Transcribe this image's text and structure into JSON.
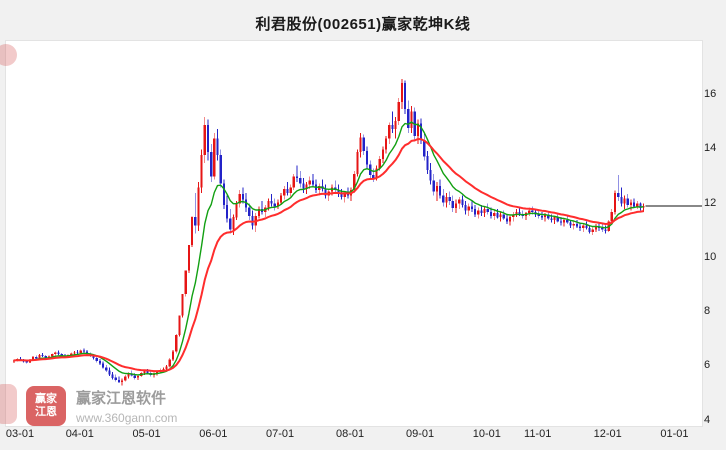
{
  "watermark": {
    "logo_line1": "赢家",
    "logo_line2": "江恩",
    "brand": "赢家江恩软件",
    "url": "www.360gann.com"
  },
  "chart_data": {
    "type": "candlestick",
    "title": "利君股份(002651)赢家乾坤K线",
    "last_price": 11.92,
    "colors": {
      "up": "#e61515",
      "down": "#2323c8",
      "last_price_line": "#111111",
      "plot_background": "#ffffff",
      "page_background": "#f1f1f1"
    },
    "y_axis": {
      "ticks": [
        16,
        14,
        12,
        10,
        8,
        6,
        4
      ],
      "min": 3.8,
      "max": 18.0
    },
    "x_axis": {
      "labels": [
        {
          "index": 0,
          "label": "03-01"
        },
        {
          "index": 21,
          "label": "04-01"
        },
        {
          "index": 42,
          "label": "05-01"
        },
        {
          "index": 63,
          "label": "06-01"
        },
        {
          "index": 84,
          "label": "07-01"
        },
        {
          "index": 106,
          "label": "08-01"
        },
        {
          "index": 128,
          "label": "09-01"
        },
        {
          "index": 149,
          "label": "10-01"
        },
        {
          "index": 165,
          "label": "11-01"
        },
        {
          "index": 187,
          "label": "12-01"
        },
        {
          "index": 208,
          "label": "01-01"
        }
      ]
    },
    "overlays": [
      {
        "name": "fast-ma",
        "period": 10,
        "color": "#12a012",
        "width": 1.4
      },
      {
        "name": "slow-ma",
        "period": 22,
        "color": "#ff2d2d",
        "width": 2
      }
    ],
    "candles": [
      [
        6.18,
        6.25,
        6.12,
        6.22
      ],
      [
        6.22,
        6.3,
        6.18,
        6.28
      ],
      [
        6.28,
        6.35,
        6.22,
        6.25
      ],
      [
        6.25,
        6.28,
        6.15,
        6.18
      ],
      [
        6.18,
        6.24,
        6.1,
        6.14
      ],
      [
        6.14,
        6.28,
        6.12,
        6.26
      ],
      [
        6.26,
        6.38,
        6.22,
        6.35
      ],
      [
        6.35,
        6.4,
        6.28,
        6.3
      ],
      [
        6.3,
        6.45,
        6.28,
        6.42
      ],
      [
        6.42,
        6.5,
        6.35,
        6.38
      ],
      [
        6.38,
        6.42,
        6.28,
        6.32
      ],
      [
        6.32,
        6.4,
        6.26,
        6.36
      ],
      [
        6.36,
        6.48,
        6.32,
        6.45
      ],
      [
        6.45,
        6.55,
        6.4,
        6.52
      ],
      [
        6.52,
        6.58,
        6.42,
        6.46
      ],
      [
        6.46,
        6.5,
        6.35,
        6.4
      ],
      [
        6.4,
        6.45,
        6.3,
        6.34
      ],
      [
        6.34,
        6.44,
        6.3,
        6.42
      ],
      [
        6.42,
        6.52,
        6.38,
        6.48
      ],
      [
        6.48,
        6.56,
        6.42,
        6.52
      ],
      [
        6.52,
        6.6,
        6.45,
        6.5
      ],
      [
        6.5,
        6.62,
        6.45,
        6.58
      ],
      [
        6.58,
        6.65,
        6.5,
        6.55
      ],
      [
        6.55,
        6.6,
        6.42,
        6.46
      ],
      [
        6.46,
        6.52,
        6.35,
        6.38
      ],
      [
        6.38,
        6.44,
        6.25,
        6.3
      ],
      [
        6.3,
        6.36,
        6.15,
        6.2
      ],
      [
        6.2,
        6.28,
        6.05,
        6.1
      ],
      [
        6.1,
        6.18,
        5.92,
        5.96
      ],
      [
        5.96,
        6.05,
        5.8,
        5.85
      ],
      [
        5.85,
        5.95,
        5.65,
        5.7
      ],
      [
        5.7,
        5.8,
        5.52,
        5.58
      ],
      [
        5.58,
        5.7,
        5.45,
        5.5
      ],
      [
        5.5,
        5.62,
        5.38,
        5.42
      ],
      [
        5.42,
        5.55,
        5.3,
        5.48
      ],
      [
        5.48,
        5.68,
        5.44,
        5.62
      ],
      [
        5.62,
        5.78,
        5.55,
        5.72
      ],
      [
        5.72,
        5.85,
        5.62,
        5.66
      ],
      [
        5.66,
        5.75,
        5.52,
        5.58
      ],
      [
        5.58,
        5.7,
        5.5,
        5.65
      ],
      [
        5.65,
        5.8,
        5.6,
        5.75
      ],
      [
        5.75,
        5.88,
        5.68,
        5.82
      ],
      [
        5.82,
        5.9,
        5.7,
        5.76
      ],
      [
        5.76,
        5.84,
        5.62,
        5.68
      ],
      [
        5.68,
        5.78,
        5.58,
        5.72
      ],
      [
        5.72,
        5.85,
        5.66,
        5.8
      ],
      [
        5.8,
        5.92,
        5.74,
        5.86
      ],
      [
        5.86,
        5.96,
        5.78,
        5.9
      ],
      [
        5.9,
        6.05,
        5.84,
        6.0
      ],
      [
        6.0,
        6.3,
        5.95,
        6.26
      ],
      [
        6.26,
        6.6,
        6.2,
        6.55
      ],
      [
        6.55,
        7.2,
        6.48,
        7.15
      ],
      [
        7.15,
        7.87,
        7.1,
        7.87
      ],
      [
        7.87,
        8.66,
        7.8,
        8.66
      ],
      [
        8.66,
        9.53,
        8.58,
        9.53
      ],
      [
        9.53,
        10.48,
        9.45,
        10.48
      ],
      [
        10.48,
        11.53,
        10.4,
        11.5
      ],
      [
        11.5,
        12.4,
        10.9,
        11.2
      ],
      [
        11.2,
        12.8,
        11.0,
        12.6
      ],
      [
        12.6,
        14.0,
        12.4,
        13.8
      ],
      [
        13.8,
        15.2,
        13.5,
        14.9
      ],
      [
        14.9,
        15.1,
        13.6,
        13.9
      ],
      [
        13.9,
        14.2,
        12.8,
        13.0
      ],
      [
        13.0,
        14.6,
        12.9,
        14.4
      ],
      [
        14.4,
        14.75,
        13.6,
        13.8
      ],
      [
        13.8,
        14.0,
        12.6,
        12.75
      ],
      [
        12.75,
        12.9,
        11.8,
        11.95
      ],
      [
        11.95,
        12.3,
        11.3,
        11.45
      ],
      [
        11.45,
        11.8,
        10.9,
        11.05
      ],
      [
        11.05,
        11.6,
        10.85,
        11.5
      ],
      [
        11.5,
        12.1,
        11.4,
        12.0
      ],
      [
        12.0,
        12.5,
        11.85,
        12.35
      ],
      [
        12.35,
        12.6,
        12.0,
        12.15
      ],
      [
        12.15,
        12.4,
        11.7,
        11.85
      ],
      [
        11.85,
        12.0,
        11.4,
        11.55
      ],
      [
        11.55,
        11.75,
        11.05,
        11.2
      ],
      [
        11.2,
        11.65,
        10.95,
        11.55
      ],
      [
        11.55,
        11.9,
        11.45,
        11.8
      ],
      [
        11.8,
        12.1,
        11.6,
        11.7
      ],
      [
        11.7,
        11.95,
        11.5,
        11.85
      ],
      [
        11.85,
        12.2,
        11.75,
        12.1
      ],
      [
        12.1,
        12.35,
        11.9,
        12.0
      ],
      [
        12.0,
        12.2,
        11.75,
        11.9
      ],
      [
        11.9,
        12.15,
        11.8,
        12.05
      ],
      [
        12.05,
        12.4,
        11.95,
        12.3
      ],
      [
        12.3,
        12.65,
        12.15,
        12.55
      ],
      [
        12.55,
        12.8,
        12.3,
        12.4
      ],
      [
        12.4,
        12.7,
        12.25,
        12.6
      ],
      [
        12.6,
        13.1,
        12.5,
        13.0
      ],
      [
        13.0,
        13.4,
        12.8,
        12.95
      ],
      [
        12.95,
        13.2,
        12.6,
        12.75
      ],
      [
        12.75,
        12.95,
        12.4,
        12.55
      ],
      [
        12.55,
        12.8,
        12.35,
        12.7
      ],
      [
        12.7,
        13.0,
        12.55,
        12.85
      ],
      [
        12.85,
        13.1,
        12.6,
        12.7
      ],
      [
        12.7,
        12.9,
        12.4,
        12.5
      ],
      [
        12.5,
        12.75,
        12.3,
        12.65
      ],
      [
        12.65,
        12.9,
        12.45,
        12.55
      ],
      [
        12.55,
        12.7,
        12.2,
        12.3
      ],
      [
        12.3,
        12.55,
        12.1,
        12.45
      ],
      [
        12.45,
        12.7,
        12.3,
        12.6
      ],
      [
        12.6,
        12.85,
        12.4,
        12.5
      ],
      [
        12.5,
        12.7,
        12.25,
        12.35
      ],
      [
        12.35,
        12.55,
        12.15,
        12.25
      ],
      [
        12.25,
        12.45,
        12.05,
        12.4
      ],
      [
        12.4,
        12.6,
        12.2,
        12.3
      ],
      [
        12.3,
        12.6,
        12.1,
        12.5
      ],
      [
        12.5,
        13.2,
        12.4,
        13.1
      ],
      [
        13.1,
        14.0,
        13.0,
        13.9
      ],
      [
        13.9,
        14.6,
        13.7,
        14.45
      ],
      [
        14.45,
        14.55,
        13.8,
        13.95
      ],
      [
        13.95,
        14.1,
        13.3,
        13.45
      ],
      [
        13.45,
        13.6,
        12.9,
        13.05
      ],
      [
        13.05,
        13.3,
        12.8,
        12.95
      ],
      [
        12.95,
        13.4,
        12.85,
        13.3
      ],
      [
        13.3,
        13.75,
        13.2,
        13.65
      ],
      [
        13.65,
        14.1,
        13.5,
        14.0
      ],
      [
        14.0,
        14.5,
        13.85,
        14.4
      ],
      [
        14.4,
        15.0,
        14.2,
        14.9
      ],
      [
        14.9,
        15.4,
        14.6,
        14.75
      ],
      [
        14.75,
        15.2,
        14.4,
        15.05
      ],
      [
        15.05,
        15.9,
        14.9,
        15.75
      ],
      [
        15.75,
        16.6,
        15.5,
        16.45
      ],
      [
        16.45,
        16.55,
        15.3,
        15.5
      ],
      [
        15.5,
        15.8,
        14.6,
        14.8
      ],
      [
        14.8,
        15.6,
        14.6,
        15.4
      ],
      [
        15.4,
        15.55,
        14.3,
        14.5
      ],
      [
        14.5,
        15.1,
        14.2,
        14.95
      ],
      [
        14.95,
        15.15,
        14.2,
        14.35
      ],
      [
        14.35,
        14.6,
        13.6,
        13.75
      ],
      [
        13.75,
        13.95,
        13.1,
        13.25
      ],
      [
        13.25,
        13.5,
        12.7,
        12.85
      ],
      [
        12.85,
        13.1,
        12.3,
        12.45
      ],
      [
        12.45,
        12.8,
        12.1,
        12.65
      ],
      [
        12.65,
        12.9,
        12.2,
        12.3
      ],
      [
        12.3,
        12.55,
        11.9,
        12.05
      ],
      [
        12.05,
        12.4,
        11.85,
        12.25
      ],
      [
        12.25,
        12.45,
        11.95,
        12.1
      ],
      [
        12.1,
        12.3,
        11.7,
        11.85
      ],
      [
        11.85,
        12.15,
        11.65,
        12.0
      ],
      [
        12.0,
        12.25,
        11.8,
        12.15
      ],
      [
        12.15,
        12.3,
        11.85,
        11.95
      ],
      [
        11.95,
        12.1,
        11.6,
        11.75
      ],
      [
        11.75,
        12.0,
        11.55,
        11.9
      ],
      [
        11.9,
        12.1,
        11.7,
        11.8
      ],
      [
        11.8,
        11.95,
        11.5,
        11.6
      ],
      [
        11.6,
        11.85,
        11.45,
        11.75
      ],
      [
        11.75,
        11.95,
        11.55,
        11.65
      ],
      [
        11.65,
        11.9,
        11.5,
        11.8
      ],
      [
        11.8,
        12.0,
        11.6,
        11.7
      ],
      [
        11.7,
        11.85,
        11.45,
        11.55
      ],
      [
        11.55,
        11.75,
        11.4,
        11.65
      ],
      [
        11.65,
        11.8,
        11.45,
        11.5
      ],
      [
        11.5,
        11.7,
        11.35,
        11.6
      ],
      [
        11.6,
        11.75,
        11.4,
        11.45
      ],
      [
        11.45,
        11.6,
        11.25,
        11.35
      ],
      [
        11.35,
        11.55,
        11.2,
        11.5
      ],
      [
        11.5,
        11.7,
        11.35,
        11.6
      ],
      [
        11.6,
        11.8,
        11.5,
        11.7
      ],
      [
        11.7,
        11.85,
        11.55,
        11.6
      ],
      [
        11.6,
        11.75,
        11.45,
        11.55
      ],
      [
        11.55,
        11.7,
        11.4,
        11.65
      ],
      [
        11.65,
        11.85,
        11.55,
        11.75
      ],
      [
        11.75,
        11.9,
        11.6,
        11.7
      ],
      [
        11.7,
        11.8,
        11.5,
        11.6
      ],
      [
        11.6,
        11.75,
        11.45,
        11.55
      ],
      [
        11.55,
        11.7,
        11.4,
        11.5
      ],
      [
        11.5,
        11.65,
        11.35,
        11.6
      ],
      [
        11.6,
        11.7,
        11.4,
        11.45
      ],
      [
        11.45,
        11.6,
        11.3,
        11.4
      ],
      [
        11.4,
        11.55,
        11.25,
        11.5
      ],
      [
        11.5,
        11.6,
        11.3,
        11.35
      ],
      [
        11.35,
        11.5,
        11.2,
        11.3
      ],
      [
        11.3,
        11.45,
        11.15,
        11.4
      ],
      [
        11.4,
        11.55,
        11.25,
        11.3
      ],
      [
        11.3,
        11.4,
        11.1,
        11.2
      ],
      [
        11.2,
        11.35,
        11.05,
        11.25
      ],
      [
        11.25,
        11.4,
        11.1,
        11.15
      ],
      [
        11.15,
        11.3,
        11.0,
        11.1
      ],
      [
        11.1,
        11.25,
        10.95,
        11.2
      ],
      [
        11.2,
        11.35,
        11.05,
        11.1
      ],
      [
        11.1,
        11.2,
        10.9,
        10.95
      ],
      [
        10.95,
        11.15,
        10.85,
        11.05
      ],
      [
        11.05,
        11.25,
        10.95,
        11.15
      ],
      [
        11.15,
        11.3,
        11.0,
        11.1
      ],
      [
        11.1,
        11.25,
        10.95,
        11.05
      ],
      [
        11.05,
        11.2,
        10.9,
        11.0
      ],
      [
        11.0,
        11.4,
        10.95,
        11.35
      ],
      [
        11.35,
        11.8,
        11.25,
        11.7
      ],
      [
        11.7,
        12.48,
        11.6,
        12.4
      ],
      [
        12.4,
        13.05,
        12.1,
        12.25
      ],
      [
        12.25,
        12.6,
        11.9,
        12.0
      ],
      [
        12.0,
        12.3,
        11.8,
        12.2
      ],
      [
        12.2,
        12.35,
        11.85,
        11.95
      ],
      [
        11.95,
        12.15,
        11.75,
        12.05
      ],
      [
        12.05,
        12.2,
        11.85,
        11.9
      ],
      [
        11.9,
        12.1,
        11.8,
        12.0
      ],
      [
        12.0,
        12.05,
        11.75,
        11.85
      ],
      [
        11.85,
        12.0,
        11.7,
        11.92
      ]
    ]
  }
}
